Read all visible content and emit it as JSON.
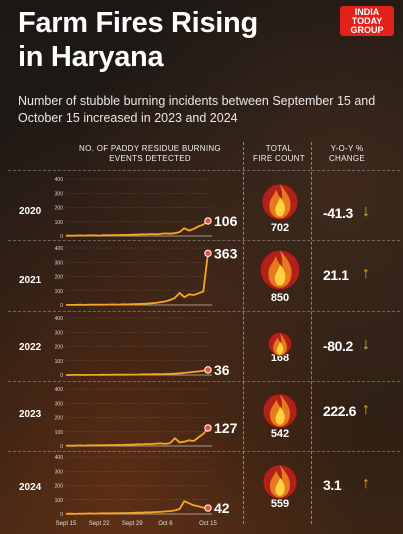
{
  "title_line1": "Farm Fires Rising",
  "title_line2": "in Haryana",
  "subtitle": "Number of stubble burning incidents between September 15 and October 15 increased in 2023 and 2024",
  "logo": [
    "INDIA",
    "TODAY",
    "GROUP"
  ],
  "headers": {
    "chart": [
      "NO. OF PADDY RESIDUE BURNING",
      "EVENTS DETECTED"
    ],
    "total": [
      "TOTAL",
      "FIRE COUNT"
    ],
    "yoy": [
      "Y-O-Y %",
      "CHANGE"
    ]
  },
  "colors": {
    "line": "#f5a623",
    "up": "#f5a623",
    "down": "#b5cc3a",
    "flame": "#e8791c"
  },
  "icons": {
    "fire": "flame-icon",
    "up": "arrow-up-icon",
    "down": "arrow-down-icon"
  },
  "rows": [
    {
      "year": "2020",
      "total": "702",
      "yoy": "-41.3",
      "direction": "down"
    },
    {
      "year": "2021",
      "total": "850",
      "yoy": "21.1",
      "direction": "up"
    },
    {
      "year": "2022",
      "total": "168",
      "yoy": "-80.2",
      "direction": "down"
    },
    {
      "year": "2023",
      "total": "542",
      "yoy": "222.6",
      "direction": "up"
    },
    {
      "year": "2024",
      "total": "559",
      "yoy": "3.1",
      "direction": "up"
    }
  ],
  "chart_data": {
    "type": "line",
    "title": "NO. OF PADDY RESIDUE BURNING EVENTS DETECTED",
    "y_ticks": [
      0,
      100,
      200,
      300,
      400
    ],
    "ylim": [
      0,
      400
    ],
    "x_tick_labels": [
      "Sept 15",
      "Sept 22",
      "Sept 29",
      "Oct 6",
      "Oct 15"
    ],
    "x_tick_days": [
      0,
      7,
      14,
      21,
      30
    ],
    "days": [
      0,
      1,
      2,
      3,
      4,
      5,
      6,
      7,
      8,
      9,
      10,
      11,
      12,
      13,
      14,
      15,
      16,
      17,
      18,
      19,
      20,
      21,
      22,
      23,
      24,
      25,
      26,
      27,
      28,
      29,
      30
    ],
    "series": [
      {
        "name": "2020",
        "end_label": "106",
        "values": [
          2,
          3,
          2,
          4,
          3,
          5,
          4,
          3,
          6,
          5,
          7,
          6,
          8,
          7,
          9,
          10,
          12,
          11,
          14,
          12,
          15,
          18,
          16,
          20,
          28,
          55,
          38,
          50,
          68,
          80,
          106
        ]
      },
      {
        "name": "2021",
        "end_label": "363",
        "values": [
          0,
          1,
          1,
          2,
          1,
          2,
          2,
          3,
          2,
          3,
          4,
          3,
          5,
          4,
          6,
          7,
          8,
          10,
          12,
          15,
          20,
          25,
          35,
          50,
          85,
          55,
          75,
          70,
          82,
          95,
          363
        ]
      },
      {
        "name": "2022",
        "end_label": "36",
        "values": [
          0,
          0,
          1,
          1,
          0,
          1,
          1,
          1,
          2,
          1,
          2,
          2,
          3,
          2,
          3,
          3,
          4,
          4,
          5,
          6,
          5,
          7,
          8,
          10,
          12,
          15,
          18,
          22,
          25,
          30,
          36
        ]
      },
      {
        "name": "2023",
        "end_label": "127",
        "values": [
          2,
          3,
          2,
          4,
          3,
          5,
          4,
          6,
          5,
          7,
          6,
          8,
          7,
          10,
          9,
          12,
          11,
          14,
          13,
          16,
          18,
          15,
          20,
          55,
          25,
          30,
          40,
          35,
          60,
          85,
          127
        ]
      },
      {
        "name": "2024",
        "end_label": "42",
        "values": [
          1,
          2,
          1,
          3,
          2,
          4,
          3,
          4,
          5,
          4,
          6,
          5,
          7,
          6,
          8,
          9,
          10,
          12,
          11,
          14,
          15,
          18,
          20,
          25,
          35,
          90,
          75,
          60,
          55,
          45,
          42
        ]
      }
    ]
  }
}
